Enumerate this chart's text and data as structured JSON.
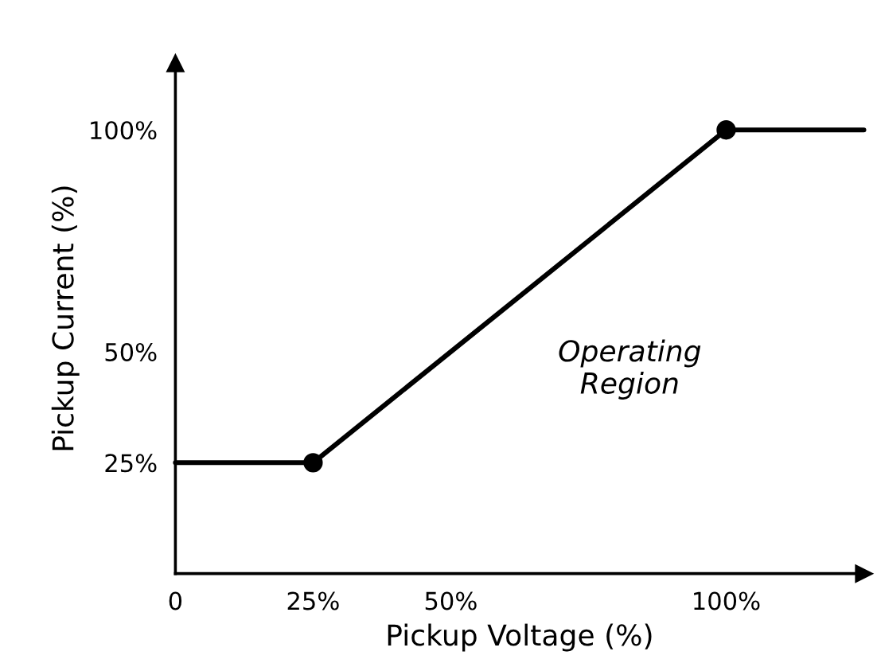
{
  "chart_data": {
    "type": "line",
    "xlabel": "Pickup Voltage (%)",
    "ylabel": "Pickup Current (%)",
    "annotations": [
      "Operating\nRegion"
    ],
    "series": [
      {
        "color": "#000000",
        "x": [
          0,
          25,
          100,
          125
        ],
        "values": [
          25,
          25,
          100,
          100
        ]
      },
      {
        "type": "scatter",
        "color": "#000000",
        "x": [
          25,
          100
        ],
        "values": [
          25,
          100
        ]
      }
    ],
    "xlim": [
      0,
      125
    ],
    "ylim": [
      0,
      115
    ],
    "xticks": [
      {
        "value": 0,
        "label": "0"
      },
      {
        "value": 25,
        "label": "25%"
      },
      {
        "value": 50,
        "label": "50%"
      },
      {
        "value": 100,
        "label": "100%"
      }
    ],
    "yticks": [
      {
        "value": 25,
        "label": "25%"
      },
      {
        "value": 50,
        "label": "50%"
      },
      {
        "value": 100,
        "label": "100%"
      }
    ],
    "grid": false,
    "legend": false
  }
}
